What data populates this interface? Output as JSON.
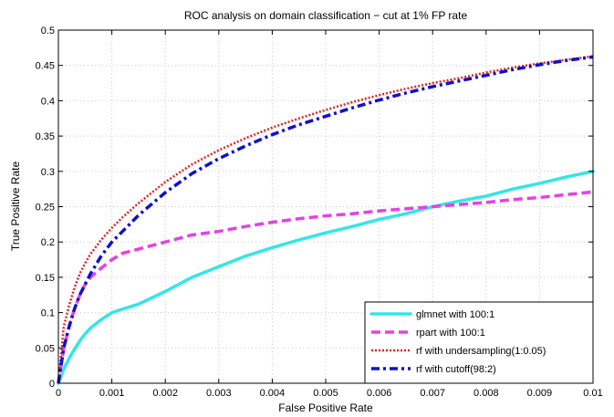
{
  "chart_data": {
    "type": "line",
    "title": "ROC analysis on domain classification − cut at 1% FP rate",
    "xlabel": "False Positive Rate",
    "ylabel": "True Positive Rate",
    "xlim": [
      0,
      0.01
    ],
    "ylim": [
      0,
      0.5
    ],
    "x_ticks": [
      "0",
      "0.001",
      "0.002",
      "0.003",
      "0.004",
      "0.005",
      "0.006",
      "0.007",
      "0.008",
      "0.009",
      "0.01"
    ],
    "y_ticks": [
      "0",
      "0.05",
      "0.1",
      "0.15",
      "0.2",
      "0.25",
      "0.3",
      "0.35",
      "0.4",
      "0.45",
      "0.5"
    ],
    "grid": true,
    "legend_position": "bottom-right",
    "x": [
      0,
      0.0001,
      0.0002,
      0.0003,
      0.0004,
      0.0005,
      0.0006,
      0.0008,
      0.001,
      0.0012,
      0.0015,
      0.002,
      0.0025,
      0.003,
      0.0035,
      0.004,
      0.0045,
      0.005,
      0.0055,
      0.006,
      0.0065,
      0.007,
      0.0075,
      0.008,
      0.0085,
      0.009,
      0.0095,
      0.01
    ],
    "series": [
      {
        "name": "glmnet with 100:1",
        "color": "#33e6e6",
        "dash": "solid",
        "values": [
          0,
          0.02,
          0.035,
          0.048,
          0.06,
          0.07,
          0.078,
          0.09,
          0.1,
          0.105,
          0.112,
          0.13,
          0.15,
          0.165,
          0.18,
          0.192,
          0.203,
          0.213,
          0.222,
          0.232,
          0.24,
          0.25,
          0.258,
          0.265,
          0.275,
          0.283,
          0.292,
          0.3
        ]
      },
      {
        "name": "rpart with 100:1",
        "color": "#e640e6",
        "dash": "dashed",
        "values": [
          0,
          0.05,
          0.08,
          0.105,
          0.125,
          0.14,
          0.15,
          0.163,
          0.175,
          0.184,
          0.19,
          0.2,
          0.21,
          0.215,
          0.222,
          0.228,
          0.233,
          0.237,
          0.24,
          0.244,
          0.247,
          0.25,
          0.253,
          0.256,
          0.26,
          0.263,
          0.267,
          0.271
        ]
      },
      {
        "name": "rf with undersampling(1:0.05)",
        "color": "#e62020",
        "dash": "dotted",
        "values": [
          0,
          0.08,
          0.11,
          0.135,
          0.155,
          0.17,
          0.183,
          0.203,
          0.22,
          0.235,
          0.255,
          0.285,
          0.31,
          0.33,
          0.347,
          0.362,
          0.375,
          0.387,
          0.398,
          0.408,
          0.417,
          0.425,
          0.432,
          0.44,
          0.447,
          0.453,
          0.458,
          0.463
        ]
      },
      {
        "name": "rf with cutoff(98:2)",
        "color": "#1010d0",
        "dash": "dashdot",
        "values": [
          0,
          0.05,
          0.08,
          0.105,
          0.125,
          0.14,
          0.155,
          0.18,
          0.2,
          0.215,
          0.238,
          0.27,
          0.297,
          0.318,
          0.336,
          0.352,
          0.366,
          0.378,
          0.39,
          0.401,
          0.411,
          0.42,
          0.428,
          0.436,
          0.444,
          0.451,
          0.457,
          0.462
        ]
      }
    ]
  }
}
